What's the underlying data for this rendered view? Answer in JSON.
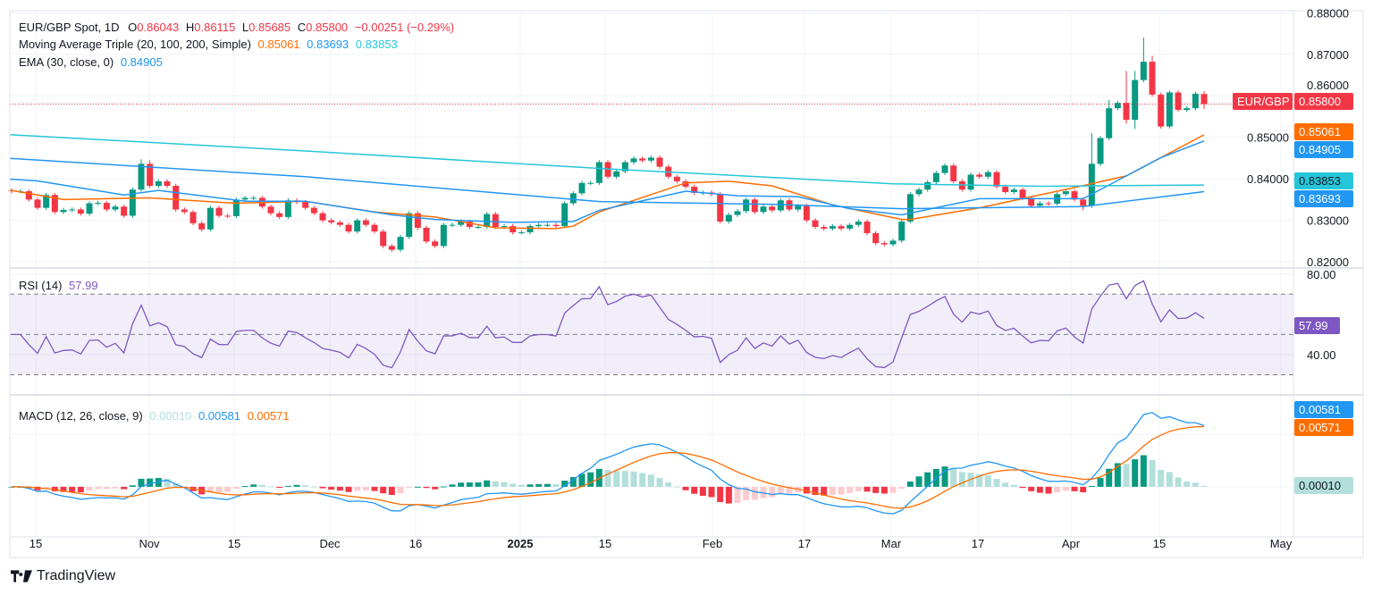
{
  "header": {
    "symbol": "EUR/GBP Spot, 1D",
    "o_label": "O",
    "open": "0.86043",
    "h_label": "H",
    "high": "0.86115",
    "l_label": "L",
    "low": "0.85685",
    "c_label": "C",
    "close": "0.85800",
    "change": "−0.00251 (−0.29%)"
  },
  "ma_legend": {
    "title": "Moving Average Triple (20, 100, 200, Simple)",
    "ma20": "0.85061",
    "ma100": "0.83693",
    "ma200": "0.83853"
  },
  "ema_legend": {
    "title": "EMA (30, close, 0)",
    "value": "0.84905"
  },
  "rsi_legend": {
    "title": "RSI (14)",
    "value": "57.99"
  },
  "macd_legend": {
    "title": "MACD (12, 26, close, 9)",
    "hist": "0.00010",
    "macd": "0.00581",
    "signal": "0.00571"
  },
  "tags": {
    "symbol": "EUR/GBP",
    "price": "0.85800",
    "ma20": "0.85061",
    "ema": "0.84905",
    "ma200": "0.83853",
    "ma100": "0.83693",
    "rsi": "57.99",
    "macd": "0.00581",
    "signal": "0.00571",
    "hist": "0.00010"
  },
  "branding": {
    "logo_text": "TradingView"
  },
  "colors": {
    "up": "#089981",
    "down": "#F23645",
    "ma20": "#FF6D00",
    "ma100": "#2196F3",
    "ma200": "#26C6DA",
    "ema": "#2196F3",
    "rsi": "#7E57C2",
    "hist_up_light": "#B2DFDB",
    "hist_down_light": "#FCCBCD"
  },
  "chart_data": {
    "type": "candlestick",
    "title": "EUR/GBP Spot, 1D",
    "x_tick_labels": [
      "15",
      "Nov",
      "15",
      "Dec",
      "16",
      "2025",
      "15",
      "Feb",
      "17",
      "Mar",
      "17",
      "Apr",
      "15",
      "May"
    ],
    "price_axis": {
      "ticks": [
        "0.88000",
        "0.87000",
        "0.86000",
        "0.85000",
        "0.84000",
        "0.83000",
        "0.82000"
      ],
      "ylim": [
        0.8185,
        0.8805
      ]
    },
    "rsi_axis": {
      "ticks": [
        "80.00",
        "40.00"
      ],
      "bands": [
        70,
        50,
        30
      ],
      "ylim": [
        20,
        83
      ]
    },
    "macd_axis": {
      "ylim": [
        -0.0048,
        0.0088
      ]
    },
    "last_open": 0.86043,
    "last_high": 0.86115,
    "last_low": 0.85685,
    "closes": [
      0.837,
      0.837,
      0.835,
      0.833,
      0.8361,
      0.832,
      0.8325,
      0.8326,
      0.8316,
      0.8341,
      0.8342,
      0.8326,
      0.8333,
      0.8311,
      0.8374,
      0.8436,
      0.8383,
      0.8394,
      0.8383,
      0.8326,
      0.832,
      0.8293,
      0.8278,
      0.833,
      0.8311,
      0.831,
      0.835,
      0.8354,
      0.8354,
      0.8333,
      0.8317,
      0.8308,
      0.8348,
      0.8344,
      0.833,
      0.8317,
      0.83,
      0.8295,
      0.8289,
      0.8273,
      0.83,
      0.8289,
      0.8273,
      0.8238,
      0.8229,
      0.826,
      0.8317,
      0.8282,
      0.8249,
      0.8238,
      0.8289,
      0.8289,
      0.8297,
      0.8284,
      0.8284,
      0.8315,
      0.8284,
      0.8286,
      0.8271,
      0.8271,
      0.8286,
      0.8289,
      0.8289,
      0.8286,
      0.8341,
      0.8365,
      0.839,
      0.839,
      0.844,
      0.8405,
      0.8418,
      0.844,
      0.8449,
      0.8444,
      0.8451,
      0.8429,
      0.8405,
      0.8394,
      0.8381,
      0.8366,
      0.8367,
      0.8363,
      0.8297,
      0.8313,
      0.8322,
      0.835,
      0.832,
      0.8333,
      0.8324,
      0.8348,
      0.8326,
      0.8335,
      0.83,
      0.8284,
      0.828,
      0.8286,
      0.828,
      0.8289,
      0.8297,
      0.8269,
      0.8245,
      0.8242,
      0.8251,
      0.8297,
      0.8363,
      0.8374,
      0.8392,
      0.8414,
      0.8432,
      0.8394,
      0.8374,
      0.841,
      0.8405,
      0.8416,
      0.8381,
      0.8368,
      0.8374,
      0.8354,
      0.8335,
      0.8341,
      0.834,
      0.8363,
      0.837,
      0.835,
      0.8335,
      0.8436,
      0.8498,
      0.857,
      0.8583,
      0.8542,
      0.8638,
      0.8682,
      0.8603,
      0.8526,
      0.8608,
      0.8566,
      0.857,
      0.8605,
      0.858
    ],
    "high_overrides": {
      "15": 0.8447,
      "16": 0.8444,
      "125": 0.851,
      "127": 0.859,
      "129": 0.866,
      "130": 0.866,
      "131": 0.874,
      "132": 0.8696
    },
    "low_overrides": {
      "124": 0.8324,
      "129": 0.8533,
      "130": 0.852
    },
    "series": [
      {
        "name": "SMA 20",
        "points": [
          [
            0,
            0.8372
          ],
          [
            6,
            0.835
          ],
          [
            16,
            0.8354
          ],
          [
            26,
            0.8341
          ],
          [
            34,
            0.8346
          ],
          [
            42,
            0.832
          ],
          [
            49,
            0.8308
          ],
          [
            56,
            0.8282
          ],
          [
            63,
            0.828
          ],
          [
            65,
            0.8286
          ],
          [
            68,
            0.832
          ],
          [
            78,
            0.839
          ],
          [
            83,
            0.8394
          ],
          [
            88,
            0.8383
          ],
          [
            95,
            0.8337
          ],
          [
            103,
            0.8302
          ],
          [
            104,
            0.8302
          ],
          [
            112,
            0.833
          ],
          [
            123,
            0.8379
          ],
          [
            129,
            0.8407
          ],
          [
            133,
            0.8451
          ],
          [
            138,
            0.8506
          ]
        ]
      },
      {
        "name": "EMA 30",
        "points": [
          [
            0,
            0.8399
          ],
          [
            3,
            0.8395
          ],
          [
            13,
            0.8361
          ],
          [
            17,
            0.8372
          ],
          [
            27,
            0.8346
          ],
          [
            34,
            0.8346
          ],
          [
            44,
            0.8313
          ],
          [
            49,
            0.8302
          ],
          [
            58,
            0.8295
          ],
          [
            65,
            0.8297
          ],
          [
            68,
            0.8324
          ],
          [
            78,
            0.837
          ],
          [
            84,
            0.8359
          ],
          [
            91,
            0.8357
          ],
          [
            97,
            0.8328
          ],
          [
            103,
            0.8313
          ],
          [
            112,
            0.8352
          ],
          [
            124,
            0.8352
          ],
          [
            129,
            0.8407
          ],
          [
            133,
            0.8451
          ],
          [
            138,
            0.8491
          ]
        ]
      },
      {
        "name": "SMA 100",
        "points": [
          [
            0,
            0.8449
          ],
          [
            34,
            0.8405
          ],
          [
            68,
            0.8345
          ],
          [
            89,
            0.8338
          ],
          [
            103,
            0.8328
          ],
          [
            124,
            0.8333
          ],
          [
            138,
            0.8369
          ]
        ]
      },
      {
        "name": "SMA 200",
        "points": [
          [
            0,
            0.8506
          ],
          [
            34,
            0.8467
          ],
          [
            68,
            0.8425
          ],
          [
            102,
            0.8388
          ],
          [
            119,
            0.8382
          ],
          [
            138,
            0.8385
          ]
        ]
      }
    ]
  }
}
